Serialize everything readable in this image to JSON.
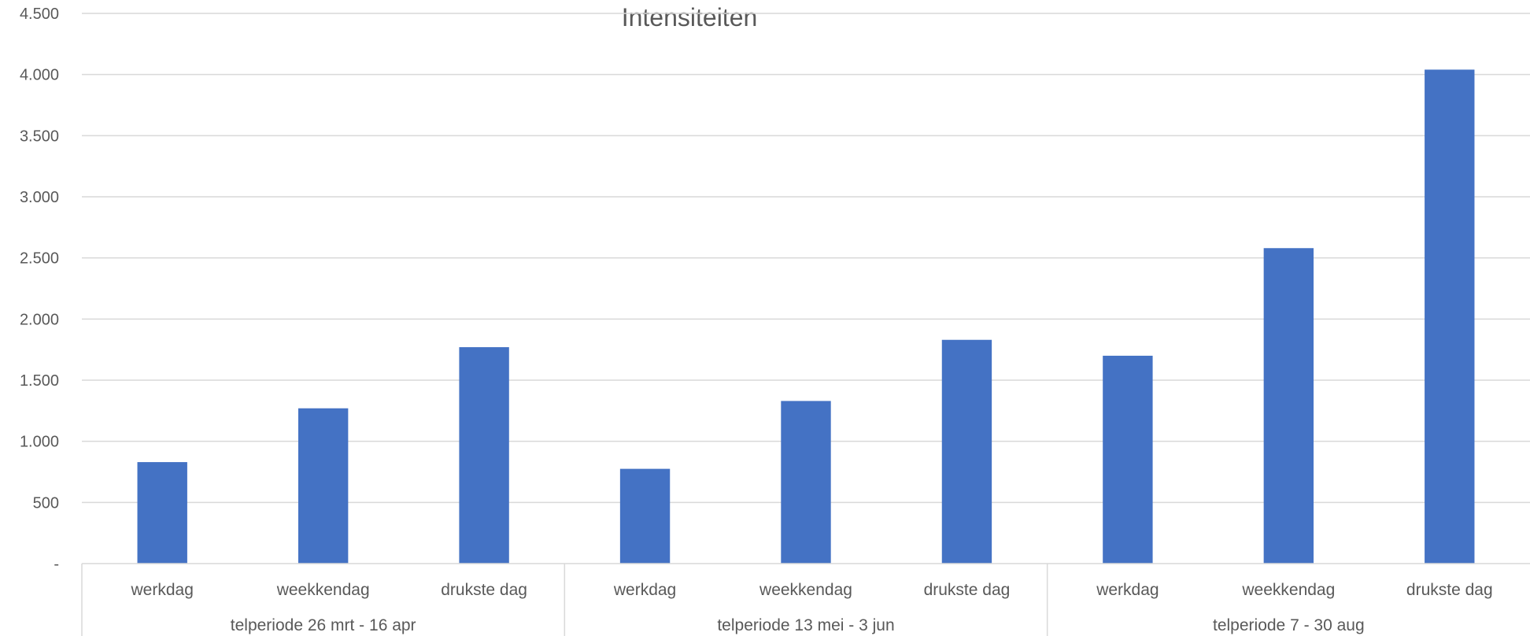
{
  "chart_data": {
    "type": "bar",
    "title": "Intensiteiten",
    "xlabel": "",
    "ylabel": "",
    "ylim": [
      0,
      4500
    ],
    "y_ticks": [
      {
        "value": 0,
        "label": "-"
      },
      {
        "value": 500,
        "label": "500"
      },
      {
        "value": 1000,
        "label": "1.000"
      },
      {
        "value": 1500,
        "label": "1.500"
      },
      {
        "value": 2000,
        "label": "2.000"
      },
      {
        "value": 2500,
        "label": "2.500"
      },
      {
        "value": 3000,
        "label": "3.000"
      },
      {
        "value": 3500,
        "label": "3.500"
      },
      {
        "value": 4000,
        "label": "4.000"
      },
      {
        "value": 4500,
        "label": "4.500"
      }
    ],
    "grid": true,
    "legend": "none",
    "bar_color": "#4472C4",
    "groups": [
      {
        "label": "telperiode 26 mrt - 16 apr",
        "categories": [
          "werkdag",
          "weekkendag",
          "drukste dag"
        ],
        "values": [
          830,
          1270,
          1770
        ]
      },
      {
        "label": "telperiode 13 mei - 3 jun",
        "categories": [
          "werkdag",
          "weekkendag",
          "drukste dag"
        ],
        "values": [
          775,
          1330,
          1830
        ]
      },
      {
        "label": "telperiode 7 - 30 aug",
        "categories": [
          "werkdag",
          "weekkendag",
          "drukste dag"
        ],
        "values": [
          1700,
          2580,
          4040
        ]
      }
    ]
  }
}
